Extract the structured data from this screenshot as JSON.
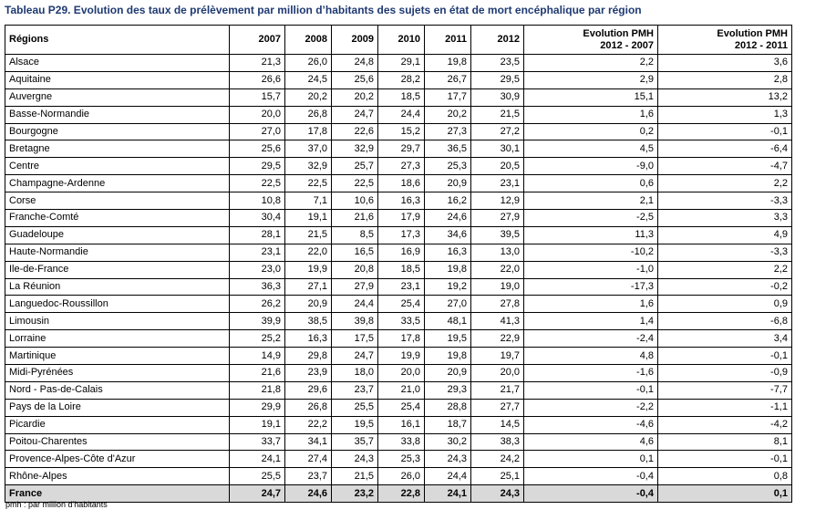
{
  "title": "Tableau P29. Evolution des taux de prélèvement par million d’habitants des sujets en état de mort encéphalique par région",
  "table": {
    "header": {
      "region": "Régions",
      "years": [
        "2007",
        "2008",
        "2009",
        "2010",
        "2011",
        "2012"
      ],
      "evol1": {
        "line1": "Evolution PMH",
        "line2": "2012 - 2007"
      },
      "evol2": {
        "line1": "Evolution PMH",
        "line2": "2012 - 2011"
      }
    },
    "rows": [
      {
        "region": "Alsace",
        "values": [
          "21,3",
          "26,0",
          "24,8",
          "29,1",
          "19,8",
          "23,5",
          "2,2",
          "3,6"
        ]
      },
      {
        "region": "Aquitaine",
        "values": [
          "26,6",
          "24,5",
          "25,6",
          "28,2",
          "26,7",
          "29,5",
          "2,9",
          "2,8"
        ]
      },
      {
        "region": "Auvergne",
        "values": [
          "15,7",
          "20,2",
          "20,2",
          "18,5",
          "17,7",
          "30,9",
          "15,1",
          "13,2"
        ]
      },
      {
        "region": "Basse-Normandie",
        "values": [
          "20,0",
          "26,8",
          "24,7",
          "24,4",
          "20,2",
          "21,5",
          "1,6",
          "1,3"
        ]
      },
      {
        "region": "Bourgogne",
        "values": [
          "27,0",
          "17,8",
          "22,6",
          "15,2",
          "27,3",
          "27,2",
          "0,2",
          "-0,1"
        ]
      },
      {
        "region": "Bretagne",
        "values": [
          "25,6",
          "37,0",
          "32,9",
          "29,7",
          "36,5",
          "30,1",
          "4,5",
          "-6,4"
        ]
      },
      {
        "region": "Centre",
        "values": [
          "29,5",
          "32,9",
          "25,7",
          "27,3",
          "25,3",
          "20,5",
          "-9,0",
          "-4,7"
        ]
      },
      {
        "region": "Champagne-Ardenne",
        "values": [
          "22,5",
          "22,5",
          "22,5",
          "18,6",
          "20,9",
          "23,1",
          "0,6",
          "2,2"
        ]
      },
      {
        "region": "Corse",
        "values": [
          "10,8",
          "7,1",
          "10,6",
          "16,3",
          "16,2",
          "12,9",
          "2,1",
          "-3,3"
        ]
      },
      {
        "region": "Franche-Comté",
        "values": [
          "30,4",
          "19,1",
          "21,6",
          "17,9",
          "24,6",
          "27,9",
          "-2,5",
          "3,3"
        ]
      },
      {
        "region": "Guadeloupe",
        "values": [
          "28,1",
          "21,5",
          "8,5",
          "17,3",
          "34,6",
          "39,5",
          "11,3",
          "4,9"
        ]
      },
      {
        "region": "Haute-Normandie",
        "values": [
          "23,1",
          "22,0",
          "16,5",
          "16,9",
          "16,3",
          "13,0",
          "-10,2",
          "-3,3"
        ]
      },
      {
        "region": "Ile-de-France",
        "values": [
          "23,0",
          "19,9",
          "20,8",
          "18,5",
          "19,8",
          "22,0",
          "-1,0",
          "2,2"
        ]
      },
      {
        "region": "La Réunion",
        "values": [
          "36,3",
          "27,1",
          "27,9",
          "23,1",
          "19,2",
          "19,0",
          "-17,3",
          "-0,2"
        ]
      },
      {
        "region": "Languedoc-Roussillon",
        "values": [
          "26,2",
          "20,9",
          "24,4",
          "25,4",
          "27,0",
          "27,8",
          "1,6",
          "0,9"
        ]
      },
      {
        "region": "Limousin",
        "values": [
          "39,9",
          "38,5",
          "39,8",
          "33,5",
          "48,1",
          "41,3",
          "1,4",
          "-6,8"
        ]
      },
      {
        "region": "Lorraine",
        "values": [
          "25,2",
          "16,3",
          "17,5",
          "17,8",
          "19,5",
          "22,9",
          "-2,4",
          "3,4"
        ]
      },
      {
        "region": "Martinique",
        "values": [
          "14,9",
          "29,8",
          "24,7",
          "19,9",
          "19,8",
          "19,7",
          "4,8",
          "-0,1"
        ]
      },
      {
        "region": "Midi-Pyrénées",
        "values": [
          "21,6",
          "23,9",
          "18,0",
          "20,0",
          "20,9",
          "20,0",
          "-1,6",
          "-0,9"
        ]
      },
      {
        "region": "Nord - Pas-de-Calais",
        "values": [
          "21,8",
          "29,6",
          "23,7",
          "21,0",
          "29,3",
          "21,7",
          "-0,1",
          "-7,7"
        ]
      },
      {
        "region": "Pays de la Loire",
        "values": [
          "29,9",
          "26,8",
          "25,5",
          "25,4",
          "28,8",
          "27,7",
          "-2,2",
          "-1,1"
        ]
      },
      {
        "region": "Picardie",
        "values": [
          "19,1",
          "22,2",
          "19,5",
          "16,1",
          "18,7",
          "14,5",
          "-4,6",
          "-4,2"
        ]
      },
      {
        "region": "Poitou-Charentes",
        "values": [
          "33,7",
          "34,1",
          "35,7",
          "33,8",
          "30,2",
          "38,3",
          "4,6",
          "8,1"
        ]
      },
      {
        "region": "Provence-Alpes-Côte d'Azur",
        "values": [
          "24,1",
          "27,4",
          "24,3",
          "25,3",
          "24,3",
          "24,2",
          "0,1",
          "-0,1"
        ]
      },
      {
        "region": "Rhône-Alpes",
        "values": [
          "25,5",
          "23,7",
          "21,5",
          "26,0",
          "24,4",
          "25,1",
          "-0,4",
          "0,8"
        ]
      }
    ],
    "total": {
      "region": "France",
      "values": [
        "24,7",
        "24,6",
        "23,2",
        "22,8",
        "24,1",
        "24,3",
        "-0,4",
        "0,1"
      ]
    }
  },
  "footnote": "pmh : par million d'habitants"
}
